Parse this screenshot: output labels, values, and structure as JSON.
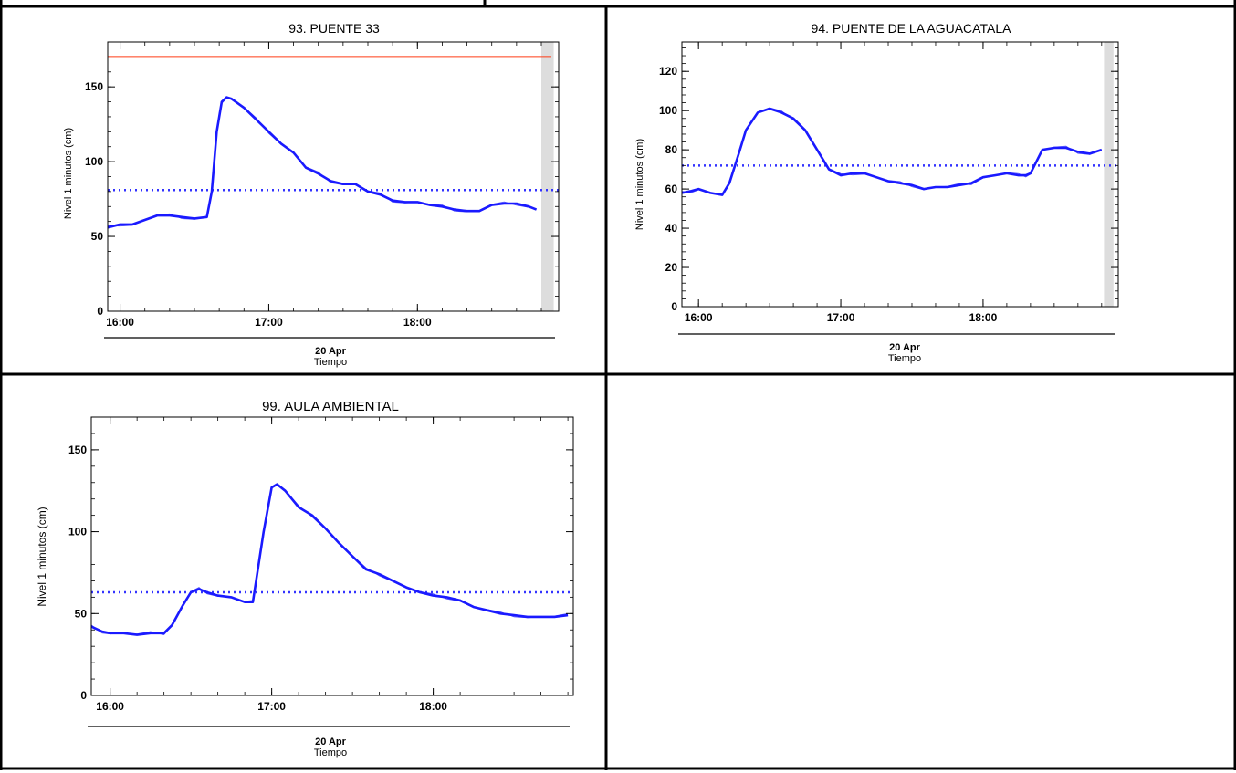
{
  "colors": {
    "series": "#1a1aff",
    "threshold_red": "#ff3b14",
    "dotted": "#3333ff",
    "axis": "#000000",
    "future_band": "#dddddd"
  },
  "chart_data": [
    {
      "type": "line",
      "title": "93. PUENTE 33",
      "ylabel": "Nivel 1 minutos (cm)",
      "xlabel": "Tiempo",
      "date_label": "20 Apr",
      "x_ticks": [
        "16:00",
        "17:00",
        "18:00"
      ],
      "y_ticks": [
        "0",
        "50",
        "100",
        "150"
      ],
      "xlim": [
        "15:55",
        "18:57"
      ],
      "ylim": [
        0,
        180
      ],
      "red_line": 170,
      "dotted_line": 81,
      "future_band": [
        "18:50",
        "18:55"
      ],
      "series": [
        {
          "x": [
            "15:55",
            "16:00",
            "16:05",
            "16:10",
            "16:15",
            "16:20",
            "16:25",
            "16:30",
            "16:35",
            "16:37",
            "16:39",
            "16:41",
            "16:43",
            "16:45",
            "16:50",
            "16:55",
            "17:00",
            "17:05",
            "17:10",
            "17:15",
            "17:20",
            "17:25",
            "17:30",
            "17:35",
            "17:40",
            "17:45",
            "17:50",
            "17:55",
            "18:00",
            "18:05",
            "18:10",
            "18:15",
            "18:20",
            "18:25",
            "18:30",
            "18:35",
            "18:40",
            "18:45",
            "18:48"
          ],
          "values": [
            56,
            58,
            58,
            61,
            64,
            64,
            63,
            62,
            63,
            80,
            120,
            140,
            143,
            142,
            136,
            128,
            120,
            112,
            106,
            96,
            92,
            87,
            85,
            85,
            80,
            78,
            74,
            73,
            73,
            71,
            70,
            68,
            67,
            67,
            71,
            72,
            72,
            70,
            68
          ]
        }
      ]
    },
    {
      "type": "line",
      "title": "94. PUENTE DE LA AGUACATALA",
      "ylabel": "Nivel 1 minutos (cm)",
      "xlabel": "Tiempo",
      "date_label": "20 Apr",
      "x_ticks": [
        "16:00",
        "17:00",
        "18:00"
      ],
      "y_ticks": [
        "0",
        "20",
        "40",
        "60",
        "80",
        "100",
        "120"
      ],
      "xlim": [
        "15:53",
        "18:57"
      ],
      "ylim": [
        0,
        135
      ],
      "dotted_line": 72,
      "future_band": [
        "18:51",
        "18:55"
      ],
      "series": [
        {
          "x": [
            "15:53",
            "15:57",
            "16:00",
            "16:05",
            "16:10",
            "16:13",
            "16:17",
            "16:20",
            "16:25",
            "16:30",
            "16:35",
            "16:40",
            "16:45",
            "16:50",
            "16:55",
            "17:00",
            "17:05",
            "17:10",
            "17:15",
            "17:20",
            "17:25",
            "17:30",
            "17:35",
            "17:40",
            "17:45",
            "17:50",
            "17:55",
            "18:00",
            "18:05",
            "18:10",
            "18:15",
            "18:18",
            "18:20",
            "18:25",
            "18:30",
            "18:35",
            "18:40",
            "18:45",
            "18:50"
          ],
          "values": [
            58,
            59,
            60,
            58,
            57,
            63,
            78,
            90,
            99,
            101,
            99,
            96,
            90,
            80,
            70,
            67,
            68,
            68,
            66,
            64,
            63,
            62,
            60,
            61,
            61,
            62,
            63,
            66,
            67,
            68,
            67,
            67,
            68,
            80,
            81,
            81,
            79,
            78,
            80
          ]
        }
      ]
    },
    {
      "type": "line",
      "title": "99. AULA AMBIENTAL",
      "ylabel": "Nivel 1 minutos (cm)",
      "xlabel": "Tiempo",
      "date_label": "20 Apr",
      "x_ticks": [
        "16:00",
        "17:00",
        "18:00"
      ],
      "y_ticks": [
        "0",
        "50",
        "100",
        "150"
      ],
      "xlim": [
        "15:53",
        "18:52"
      ],
      "ylim": [
        0,
        170
      ],
      "dotted_line": 63,
      "series": [
        {
          "x": [
            "15:53",
            "15:57",
            "16:00",
            "16:05",
            "16:10",
            "16:15",
            "16:20",
            "16:23",
            "16:27",
            "16:30",
            "16:33",
            "16:36",
            "16:40",
            "16:45",
            "16:50",
            "16:53",
            "16:57",
            "17:00",
            "17:02",
            "17:05",
            "17:10",
            "17:15",
            "17:20",
            "17:25",
            "17:30",
            "17:35",
            "17:40",
            "17:45",
            "17:50",
            "17:55",
            "18:00",
            "18:05",
            "18:10",
            "18:15",
            "18:20",
            "18:25",
            "18:30",
            "18:35",
            "18:40",
            "18:45",
            "18:50"
          ],
          "values": [
            42,
            39,
            38,
            38,
            37,
            38,
            38,
            43,
            55,
            63,
            65,
            63,
            61,
            60,
            57,
            57,
            100,
            127,
            129,
            125,
            115,
            110,
            102,
            93,
            85,
            77,
            74,
            70,
            66,
            63,
            61,
            60,
            58,
            54,
            52,
            50,
            49,
            48,
            48,
            48,
            49
          ]
        }
      ]
    }
  ]
}
